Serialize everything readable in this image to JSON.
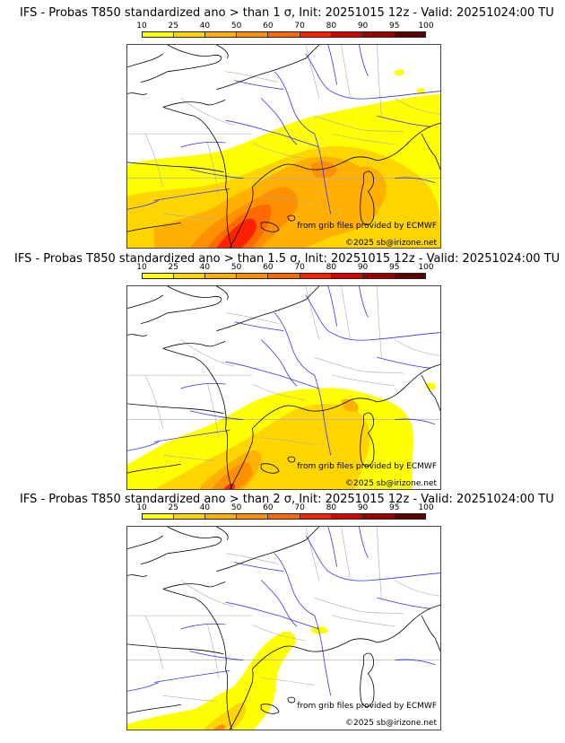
{
  "colorbar": {
    "ticks": [
      "10",
      "25",
      "40",
      "50",
      "60",
      "70",
      "80",
      "90",
      "95",
      "100"
    ],
    "colors": [
      "#ffff00",
      "#ffd500",
      "#ffb000",
      "#ff9000",
      "#ff6a00",
      "#ff2200",
      "#d40000",
      "#9a0000",
      "#5e0000"
    ]
  },
  "map_colors": {
    "land_border": "#aaaaaa",
    "coastline": "#000000",
    "rivers": "#3333ee",
    "frame": "#444444"
  },
  "panels": [
    {
      "title": "IFS - Probas T850  standardized ano > than 1 σ, Init: 20251015 12z - Valid: 20251024:00 TU",
      "threshold": "1 σ",
      "credit_source": "from grib files provided by ECMWF",
      "credit_copyright": "©2025 sb@irizone.net",
      "max_class": "70-80"
    },
    {
      "title": "IFS - Probas T850  standardized ano > than 1.5 σ, Init: 20251015 12z - Valid: 20251024:00 TU",
      "threshold": "1.5 σ",
      "credit_source": "from grib files provided by ECMWF",
      "credit_copyright": "©2025 sb@irizone.net",
      "max_class": "70-80"
    },
    {
      "title": "IFS - Probas T850  standardized ano > than 2 σ, Init: 20251015 12z - Valid: 20251024:00 TU",
      "threshold": "2 σ",
      "credit_source": "from grib files provided by ECMWF",
      "credit_copyright": "©2025 sb@irizone.net",
      "max_class": "50-60"
    }
  ]
}
